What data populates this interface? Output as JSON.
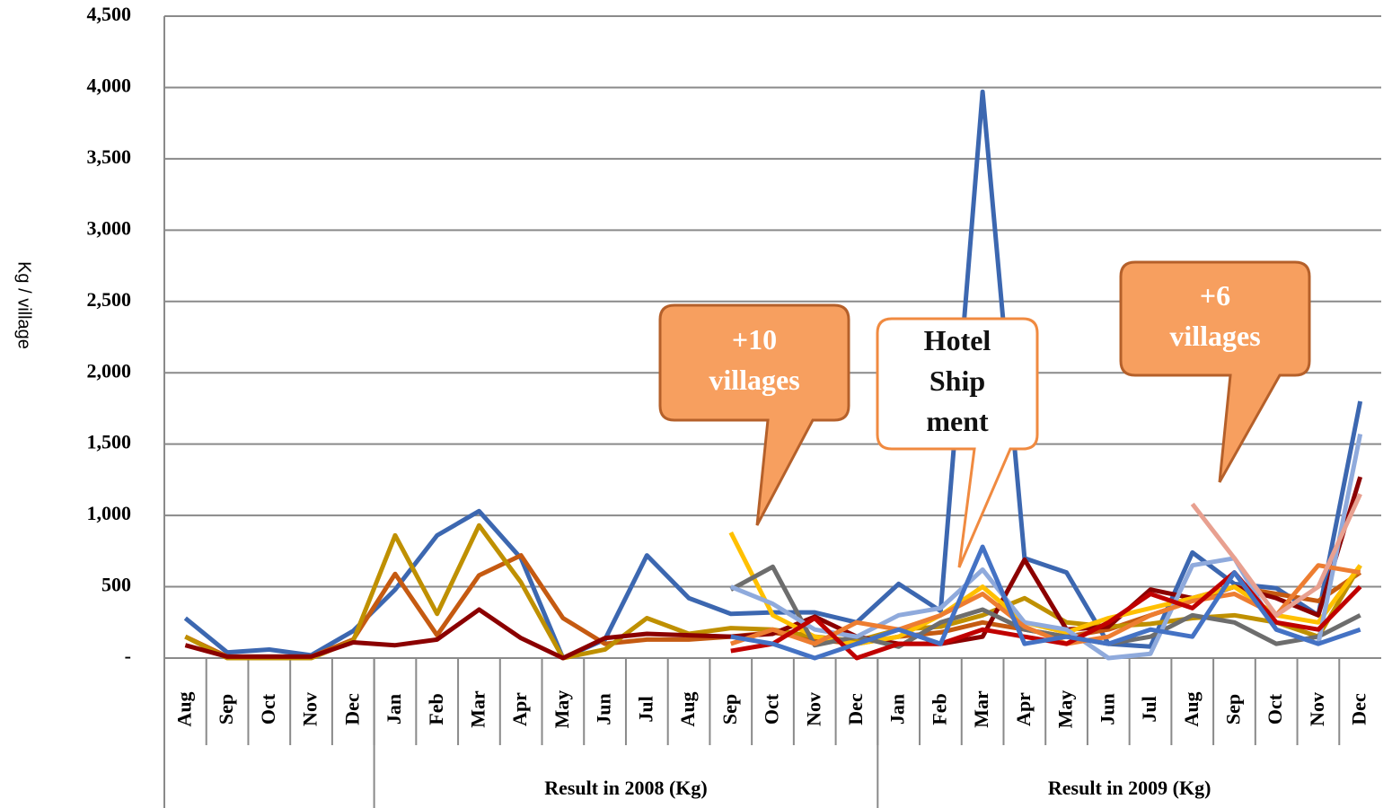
{
  "chart_data": {
    "type": "line",
    "y_label": "Kg / village",
    "categories": [
      "Aug",
      "Sep",
      "Oct",
      "Nov",
      "Dec",
      "Jan",
      "Feb",
      "Mar",
      "Apr",
      "May",
      "Jun",
      "Jul",
      "Aug",
      "Sep",
      "Oct",
      "Nov",
      "Dec",
      "Jan",
      "Feb",
      "Mar",
      "Apr",
      "May",
      "Jun",
      "Jul",
      "Aug",
      "Sep",
      "Oct",
      "Nov",
      "Dec"
    ],
    "groups": [
      {
        "label": null,
        "size": 5
      },
      {
        "label": "Result in 2008 (Kg)",
        "size": 12
      },
      {
        "label": "Result in 2009 (Kg)",
        "size": 12
      }
    ],
    "ylim": [
      0,
      4500
    ],
    "yticks": [
      {
        "value": 0,
        "label": "-"
      },
      500,
      {
        "value": 1000,
        "label": "1,000"
      },
      {
        "value": 1500,
        "label": "1,500"
      },
      {
        "value": 2000,
        "label": "2,000"
      },
      {
        "value": 2500,
        "label": "2,500"
      },
      {
        "value": 3000,
        "label": "3,000"
      },
      {
        "value": 3500,
        "label": "3,500"
      },
      {
        "value": 4000,
        "label": "4,000"
      },
      {
        "value": 4500,
        "label": "4,500"
      }
    ],
    "grid": true,
    "series": [
      {
        "color": "#3c67b0",
        "values": [
          280,
          40,
          60,
          20,
          190,
          480,
          860,
          1030,
          700,
          0,
          130,
          720,
          420,
          310,
          320,
          320,
          250,
          520,
          330,
          3970,
          700,
          600,
          100,
          80,
          740,
          520,
          490,
          300,
          1800
        ]
      },
      {
        "color": "#c55a11",
        "values": [
          150,
          10,
          10,
          10,
          130,
          590,
          160,
          580,
          720,
          280,
          100,
          130,
          130,
          150,
          180,
          130,
          100,
          150,
          180,
          250,
          200,
          150,
          200,
          300,
          400,
          500,
          450,
          400,
          600
        ]
      },
      {
        "color": "#bf9000",
        "values": [
          150,
          0,
          0,
          0,
          120,
          860,
          310,
          930,
          530,
          0,
          60,
          280,
          170,
          210,
          200,
          150,
          120,
          200,
          220,
          300,
          420,
          250,
          220,
          240,
          280,
          300,
          250,
          150,
          650
        ]
      },
      {
        "color": "#8b0000",
        "values": [
          90,
          10,
          10,
          10,
          110,
          90,
          130,
          340,
          140,
          0,
          140,
          170,
          160,
          150,
          170,
          290,
          150,
          100,
          100,
          150,
          690,
          200,
          220,
          480,
          420,
          500,
          420,
          300,
          1270
        ]
      },
      {
        "color": "#ffc000",
        "values": [
          null,
          null,
          null,
          null,
          null,
          null,
          null,
          null,
          null,
          null,
          null,
          null,
          null,
          880,
          300,
          150,
          100,
          150,
          300,
          500,
          250,
          180,
          280,
          350,
          420,
          500,
          300,
          250,
          650
        ]
      },
      {
        "color": "#6d6d6d",
        "values": [
          null,
          null,
          null,
          null,
          null,
          null,
          null,
          null,
          null,
          null,
          null,
          null,
          null,
          480,
          640,
          90,
          150,
          80,
          250,
          340,
          200,
          150,
          100,
          150,
          300,
          250,
          100,
          150,
          300
        ]
      },
      {
        "color": "#8faadc",
        "values": [
          null,
          null,
          null,
          null,
          null,
          null,
          null,
          null,
          null,
          null,
          null,
          null,
          null,
          500,
          380,
          200,
          150,
          300,
          350,
          620,
          250,
          200,
          0,
          30,
          650,
          700,
          200,
          100,
          1570
        ]
      },
      {
        "color": "#ed7d31",
        "values": [
          null,
          null,
          null,
          null,
          null,
          null,
          null,
          null,
          null,
          null,
          null,
          null,
          null,
          100,
          200,
          100,
          250,
          200,
          300,
          450,
          220,
          100,
          150,
          300,
          400,
          450,
          300,
          650,
          600
        ]
      },
      {
        "color": "#c00000",
        "values": [
          null,
          null,
          null,
          null,
          null,
          null,
          null,
          null,
          null,
          null,
          null,
          null,
          null,
          50,
          100,
          280,
          0,
          100,
          100,
          200,
          150,
          100,
          250,
          450,
          350,
          600,
          250,
          200,
          500
        ]
      },
      {
        "color": "#4472c4",
        "values": [
          null,
          null,
          null,
          null,
          null,
          null,
          null,
          null,
          null,
          null,
          null,
          null,
          null,
          150,
          100,
          0,
          100,
          200,
          100,
          780,
          100,
          150,
          100,
          200,
          150,
          600,
          200,
          100,
          200
        ]
      },
      {
        "color": "#e8a090",
        "values": [
          null,
          null,
          null,
          null,
          null,
          null,
          null,
          null,
          null,
          null,
          null,
          null,
          null,
          null,
          null,
          null,
          null,
          null,
          null,
          null,
          null,
          null,
          null,
          null,
          1080,
          700,
          300,
          500,
          1150
        ]
      }
    ],
    "annotations": [
      {
        "lines": [
          "+10",
          "villages"
        ]
      },
      {
        "lines": [
          "Hotel",
          "Ship",
          "ment"
        ]
      },
      {
        "lines": [
          "+6",
          "villages"
        ]
      }
    ]
  }
}
